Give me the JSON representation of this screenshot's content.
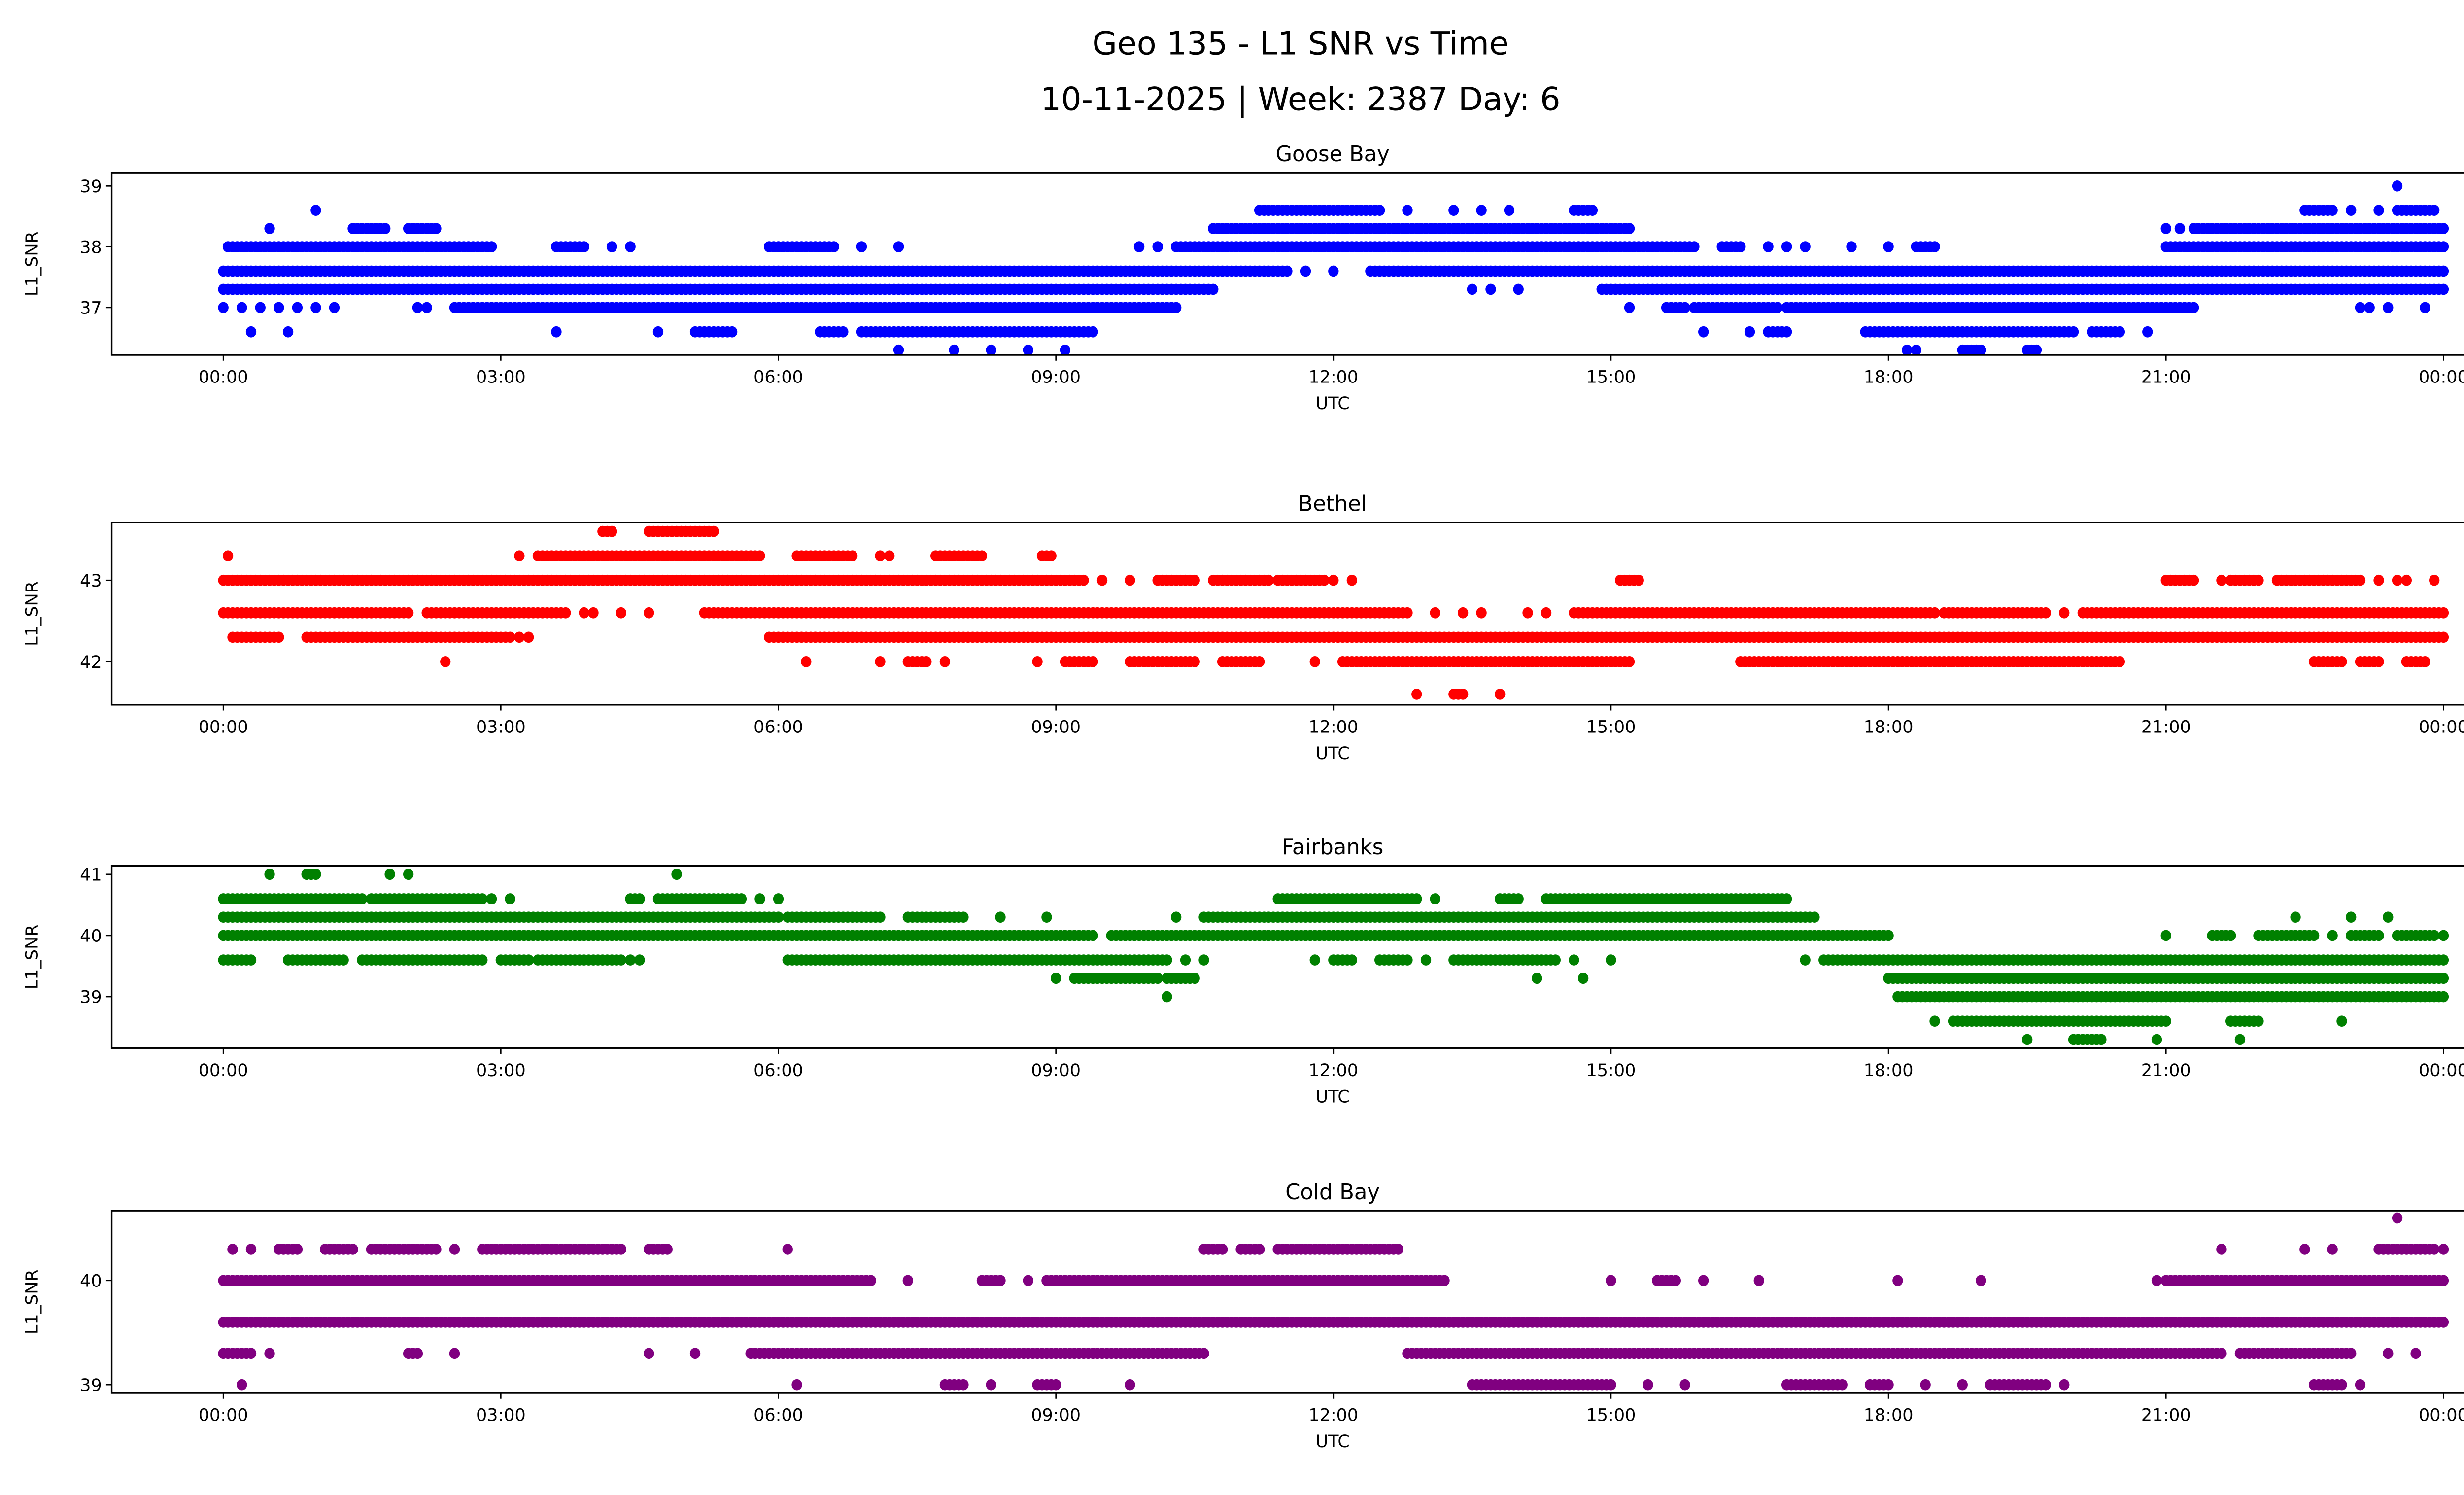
{
  "figure": {
    "title_line1": "Geo 135 - L1 SNR vs Time",
    "title_line2": "10-11-2025 | Week: 2387 Day: 6"
  },
  "chart_data": [
    {
      "type": "scatter",
      "title": "Goose Bay",
      "xlabel": "UTC",
      "ylabel": "L1_SNR",
      "color": "#0000ff",
      "xlim_hours": [
        -1.2,
        25.2
      ],
      "ylim": [
        36.22,
        39.22
      ],
      "yticks": [
        {
          "v": 37,
          "label": "37"
        },
        {
          "v": 38,
          "label": "38"
        },
        {
          "v": 39,
          "label": "39"
        }
      ],
      "xticks": [
        {
          "h": 0,
          "label": "00:00"
        },
        {
          "h": 3,
          "label": "03:00"
        },
        {
          "h": 6,
          "label": "06:00"
        },
        {
          "h": 9,
          "label": "09:00"
        },
        {
          "h": 12,
          "label": "12:00"
        },
        {
          "h": 15,
          "label": "15:00"
        },
        {
          "h": 18,
          "label": "18:00"
        },
        {
          "h": 21,
          "label": "21:00"
        },
        {
          "h": 24,
          "label": "00:00"
        }
      ],
      "levels": [
        {
          "y": 39.0,
          "runs": [],
          "points": [
            23.5
          ]
        },
        {
          "y": 38.6,
          "runs": [
            [
              11.2,
              12.5
            ],
            [
              14.6,
              14.8
            ],
            [
              22.5,
              22.8
            ],
            [
              23.5,
              23.9
            ]
          ],
          "points": [
            1.0,
            12.8,
            13.3,
            13.6,
            13.9,
            23.0,
            23.3
          ]
        },
        {
          "y": 38.3,
          "runs": [
            [
              1.4,
              1.75
            ],
            [
              2.0,
              2.3
            ],
            [
              10.7,
              15.2
            ],
            [
              21.3,
              24.0
            ]
          ],
          "points": [
            0.5,
            21.0,
            21.15
          ]
        },
        {
          "y": 38.0,
          "runs": [
            [
              0.05,
              2.9
            ],
            [
              3.6,
              3.9
            ],
            [
              5.9,
              6.6
            ],
            [
              10.3,
              15.9
            ],
            [
              16.2,
              16.4
            ],
            [
              18.3,
              18.5
            ],
            [
              21.0,
              24.0
            ]
          ],
          "points": [
            4.2,
            4.4,
            6.9,
            7.3,
            9.9,
            10.1,
            16.7,
            16.9,
            17.1,
            17.6,
            18.0
          ]
        },
        {
          "y": 37.6,
          "runs": [
            [
              0.0,
              11.5
            ],
            [
              12.4,
              24.0
            ]
          ],
          "points": [
            11.7,
            12.0
          ]
        },
        {
          "y": 37.3,
          "runs": [
            [
              0.0,
              10.7
            ],
            [
              14.9,
              24.0
            ]
          ],
          "points": [
            13.5,
            13.7,
            14.0
          ]
        },
        {
          "y": 37.0,
          "runs": [
            [
              2.5,
              10.3
            ],
            [
              15.6,
              15.8
            ],
            [
              15.9,
              16.8
            ],
            [
              16.9,
              21.3
            ]
          ],
          "points": [
            0.0,
            0.2,
            0.4,
            0.6,
            0.8,
            1.0,
            1.2,
            2.1,
            2.2,
            15.2,
            23.1,
            23.2,
            23.4,
            23.8
          ]
        },
        {
          "y": 36.6,
          "runs": [
            [
              5.1,
              5.5
            ],
            [
              6.45,
              6.7
            ],
            [
              6.9,
              9.4
            ],
            [
              16.7,
              16.9
            ],
            [
              17.75,
              20.0
            ],
            [
              20.2,
              20.5
            ]
          ],
          "points": [
            0.3,
            0.7,
            3.6,
            4.7,
            16.0,
            16.5,
            20.8
          ]
        },
        {
          "y": 36.3,
          "runs": [
            [
              18.8,
              19.0
            ],
            [
              19.5,
              19.6
            ]
          ],
          "points": [
            7.3,
            7.9,
            8.3,
            8.7,
            9.1,
            18.2,
            18.3
          ]
        }
      ]
    },
    {
      "type": "scatter",
      "title": "Bethel",
      "xlabel": "UTC",
      "ylabel": "L1_SNR",
      "color": "#ff0000",
      "xlim_hours": [
        -1.2,
        25.2
      ],
      "ylim": [
        41.47,
        43.71
      ],
      "yticks": [
        {
          "v": 42,
          "label": "42"
        },
        {
          "v": 43,
          "label": "43"
        }
      ],
      "xticks": [
        {
          "h": 0,
          "label": "00:00"
        },
        {
          "h": 3,
          "label": "03:00"
        },
        {
          "h": 6,
          "label": "06:00"
        },
        {
          "h": 9,
          "label": "09:00"
        },
        {
          "h": 12,
          "label": "12:00"
        },
        {
          "h": 15,
          "label": "15:00"
        },
        {
          "h": 18,
          "label": "18:00"
        },
        {
          "h": 21,
          "label": "21:00"
        },
        {
          "h": 24,
          "label": "00:00"
        }
      ],
      "levels": [
        {
          "y": 43.6,
          "runs": [
            [
              4.1,
              4.2
            ],
            [
              4.6,
              5.3
            ]
          ],
          "points": []
        },
        {
          "y": 43.3,
          "runs": [
            [
              3.4,
              5.8
            ],
            [
              6.2,
              6.8
            ],
            [
              7.7,
              8.2
            ],
            [
              8.85,
              8.95
            ]
          ],
          "points": [
            0.05,
            3.2,
            7.1,
            7.2
          ]
        },
        {
          "y": 43.0,
          "runs": [
            [
              0.0,
              9.3
            ],
            [
              10.1,
              10.5
            ],
            [
              10.7,
              11.3
            ],
            [
              11.4,
              11.9
            ],
            [
              15.1,
              15.3
            ],
            [
              21.0,
              21.3
            ],
            [
              21.7,
              22.0
            ],
            [
              22.2,
              23.1
            ]
          ],
          "points": [
            9.5,
            9.8,
            12.0,
            12.2,
            21.6,
            23.3,
            23.5,
            23.6,
            23.9
          ]
        },
        {
          "y": 42.6,
          "runs": [
            [
              0.0,
              2.0
            ],
            [
              2.2,
              3.7
            ],
            [
              5.2,
              12.8
            ],
            [
              14.6,
              18.5
            ],
            [
              18.6,
              19.7
            ],
            [
              20.1,
              24.0
            ]
          ],
          "points": [
            3.9,
            4.0,
            4.3,
            4.6,
            13.1,
            13.4,
            13.6,
            14.1,
            14.3,
            19.9
          ]
        },
        {
          "y": 42.3,
          "runs": [
            [
              0.1,
              0.6
            ],
            [
              0.9,
              3.1
            ],
            [
              5.9,
              24.0
            ]
          ],
          "points": [
            3.2,
            3.3
          ]
        },
        {
          "y": 42.0,
          "runs": [
            [
              7.4,
              7.6
            ],
            [
              9.1,
              9.4
            ],
            [
              9.8,
              10.5
            ],
            [
              10.8,
              11.2
            ],
            [
              12.1,
              15.2
            ],
            [
              16.4,
              20.5
            ],
            [
              22.6,
              22.9
            ],
            [
              23.1,
              23.3
            ],
            [
              23.6,
              23.8
            ]
          ],
          "points": [
            2.4,
            6.3,
            7.1,
            7.8,
            8.8,
            11.8
          ]
        },
        {
          "y": 41.6,
          "runs": [
            [
              13.3,
              13.4
            ]
          ],
          "points": [
            12.9,
            13.8
          ]
        }
      ]
    },
    {
      "type": "scatter",
      "title": "Fairbanks",
      "xlabel": "UTC",
      "ylabel": "L1_SNR",
      "color": "#008000",
      "xlim_hours": [
        -1.2,
        25.2
      ],
      "ylim": [
        38.16,
        41.14
      ],
      "yticks": [
        {
          "v": 39,
          "label": "39"
        },
        {
          "v": 40,
          "label": "40"
        },
        {
          "v": 41,
          "label": "41"
        }
      ],
      "xticks": [
        {
          "h": 0,
          "label": "00:00"
        },
        {
          "h": 3,
          "label": "03:00"
        },
        {
          "h": 6,
          "label": "06:00"
        },
        {
          "h": 9,
          "label": "09:00"
        },
        {
          "h": 12,
          "label": "12:00"
        },
        {
          "h": 15,
          "label": "15:00"
        },
        {
          "h": 18,
          "label": "18:00"
        },
        {
          "h": 21,
          "label": "21:00"
        },
        {
          "h": 24,
          "label": "00:00"
        }
      ],
      "levels": [
        {
          "y": 41.0,
          "runs": [
            [
              0.9,
              1.0
            ]
          ],
          "points": [
            0.5,
            1.8,
            2.0,
            4.9
          ]
        },
        {
          "y": 40.6,
          "runs": [
            [
              0.0,
              1.5
            ],
            [
              1.6,
              2.8
            ],
            [
              4.4,
              4.5
            ],
            [
              4.7,
              5.6
            ],
            [
              11.4,
              12.9
            ],
            [
              13.8,
              14.0
            ],
            [
              14.3,
              16.9
            ]
          ],
          "points": [
            2.9,
            3.1,
            5.8,
            6.0,
            13.1
          ]
        },
        {
          "y": 40.3,
          "runs": [
            [
              0.0,
              6.0
            ],
            [
              6.1,
              7.1
            ],
            [
              7.4,
              8.0
            ],
            [
              10.6,
              17.2
            ]
          ],
          "points": [
            8.4,
            8.9,
            10.3,
            22.4,
            23.0,
            23.4
          ]
        },
        {
          "y": 40.0,
          "runs": [
            [
              0.0,
              9.4
            ],
            [
              9.6,
              18.0
            ],
            [
              21.5,
              21.7
            ],
            [
              22.0,
              22.6
            ],
            [
              23.0,
              23.3
            ],
            [
              23.5,
              23.9
            ]
          ],
          "points": [
            21.0,
            22.8,
            24.0
          ]
        },
        {
          "y": 39.6,
          "runs": [
            [
              0.0,
              0.3
            ],
            [
              0.7,
              1.3
            ],
            [
              1.5,
              2.8
            ],
            [
              3.0,
              3.3
            ],
            [
              3.4,
              4.3
            ],
            [
              6.1,
              10.2
            ],
            [
              12.0,
              12.2
            ],
            [
              12.5,
              12.8
            ],
            [
              13.3,
              14.4
            ],
            [
              17.3,
              24.0
            ]
          ],
          "points": [
            4.4,
            4.5,
            10.4,
            10.6,
            11.8,
            13.0,
            14.6,
            15.0,
            17.1
          ]
        },
        {
          "y": 39.3,
          "runs": [
            [
              9.2,
              10.1
            ],
            [
              10.2,
              10.5
            ],
            [
              18.0,
              24.0
            ]
          ],
          "points": [
            9.0,
            14.2,
            14.7
          ]
        },
        {
          "y": 39.0,
          "runs": [
            [
              18.1,
              24.0
            ]
          ],
          "points": [
            10.2
          ]
        },
        {
          "y": 38.6,
          "runs": [
            [
              18.7,
              21.0
            ],
            [
              21.7,
              22.0
            ]
          ],
          "points": [
            18.5,
            22.9
          ]
        },
        {
          "y": 38.3,
          "runs": [
            [
              20.0,
              20.3
            ]
          ],
          "points": [
            19.5,
            20.9,
            21.8
          ]
        }
      ]
    },
    {
      "type": "scatter",
      "title": "Cold Bay",
      "xlabel": "UTC",
      "ylabel": "L1_SNR",
      "color": "#800080",
      "xlim_hours": [
        -1.2,
        25.2
      ],
      "ylim": [
        38.92,
        40.67
      ],
      "yticks": [
        {
          "v": 39,
          "label": "39"
        },
        {
          "v": 40,
          "label": "40"
        }
      ],
      "xticks": [
        {
          "h": 0,
          "label": "00:00"
        },
        {
          "h": 3,
          "label": "03:00"
        },
        {
          "h": 6,
          "label": "06:00"
        },
        {
          "h": 9,
          "label": "09:00"
        },
        {
          "h": 12,
          "label": "12:00"
        },
        {
          "h": 15,
          "label": "15:00"
        },
        {
          "h": 18,
          "label": "18:00"
        },
        {
          "h": 21,
          "label": "21:00"
        },
        {
          "h": 24,
          "label": "00:00"
        }
      ],
      "levels": [
        {
          "y": 40.6,
          "runs": [],
          "points": [
            23.5
          ]
        },
        {
          "y": 40.3,
          "runs": [
            [
              0.6,
              0.8
            ],
            [
              1.1,
              1.4
            ],
            [
              1.6,
              2.3
            ],
            [
              2.8,
              4.3
            ],
            [
              4.6,
              4.8
            ],
            [
              10.6,
              10.8
            ],
            [
              11.0,
              11.2
            ],
            [
              11.4,
              12.7
            ],
            [
              23.3,
              23.9
            ]
          ],
          "points": [
            0.1,
            0.3,
            2.5,
            6.1,
            21.6,
            22.5,
            22.8,
            24.0
          ]
        },
        {
          "y": 40.0,
          "runs": [
            [
              0.0,
              7.0
            ],
            [
              8.2,
              8.4
            ],
            [
              8.9,
              13.2
            ],
            [
              15.5,
              15.7
            ],
            [
              21.0,
              24.0
            ]
          ],
          "points": [
            7.4,
            8.7,
            15.0,
            16.0,
            16.6,
            18.1,
            19.0,
            20.9
          ]
        },
        {
          "y": 39.6,
          "runs": [
            [
              0.0,
              24.0
            ]
          ],
          "points": []
        },
        {
          "y": 39.3,
          "runs": [
            [
              0.0,
              0.3
            ],
            [
              2.0,
              2.1
            ],
            [
              5.7,
              10.6
            ],
            [
              12.8,
              21.6
            ],
            [
              21.8,
              23.0
            ]
          ],
          "points": [
            0.5,
            2.5,
            4.6,
            5.1,
            23.4,
            23.7
          ]
        },
        {
          "y": 39.0,
          "runs": [
            [
              7.8,
              8.0
            ],
            [
              8.8,
              9.0
            ],
            [
              13.5,
              15.0
            ],
            [
              16.9,
              17.5
            ],
            [
              17.8,
              18.0
            ],
            [
              19.1,
              19.7
            ],
            [
              22.6,
              22.9
            ]
          ],
          "points": [
            0.2,
            6.2,
            8.3,
            9.8,
            15.4,
            15.8,
            18.4,
            18.8,
            19.9,
            23.1
          ]
        }
      ]
    }
  ]
}
